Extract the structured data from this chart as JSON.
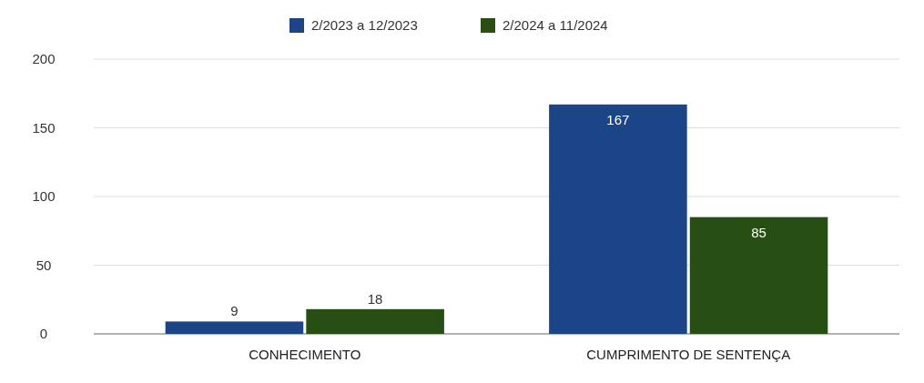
{
  "chart_data": {
    "type": "bar",
    "categories": [
      "CONHECIMENTO",
      "CUMPRIMENTO DE SENTENÇA"
    ],
    "series": [
      {
        "name": "2/2023 a 12/2023",
        "color": "#1c4587",
        "values": [
          9,
          167
        ]
      },
      {
        "name": "2/2024 a 11/2024",
        "color": "#274e13",
        "values": [
          18,
          85
        ]
      }
    ],
    "ylim": [
      0,
      200
    ],
    "yticks": [
      0,
      50,
      100,
      150,
      200
    ],
    "grid": "y",
    "legend": "top",
    "data_labels": true
  }
}
